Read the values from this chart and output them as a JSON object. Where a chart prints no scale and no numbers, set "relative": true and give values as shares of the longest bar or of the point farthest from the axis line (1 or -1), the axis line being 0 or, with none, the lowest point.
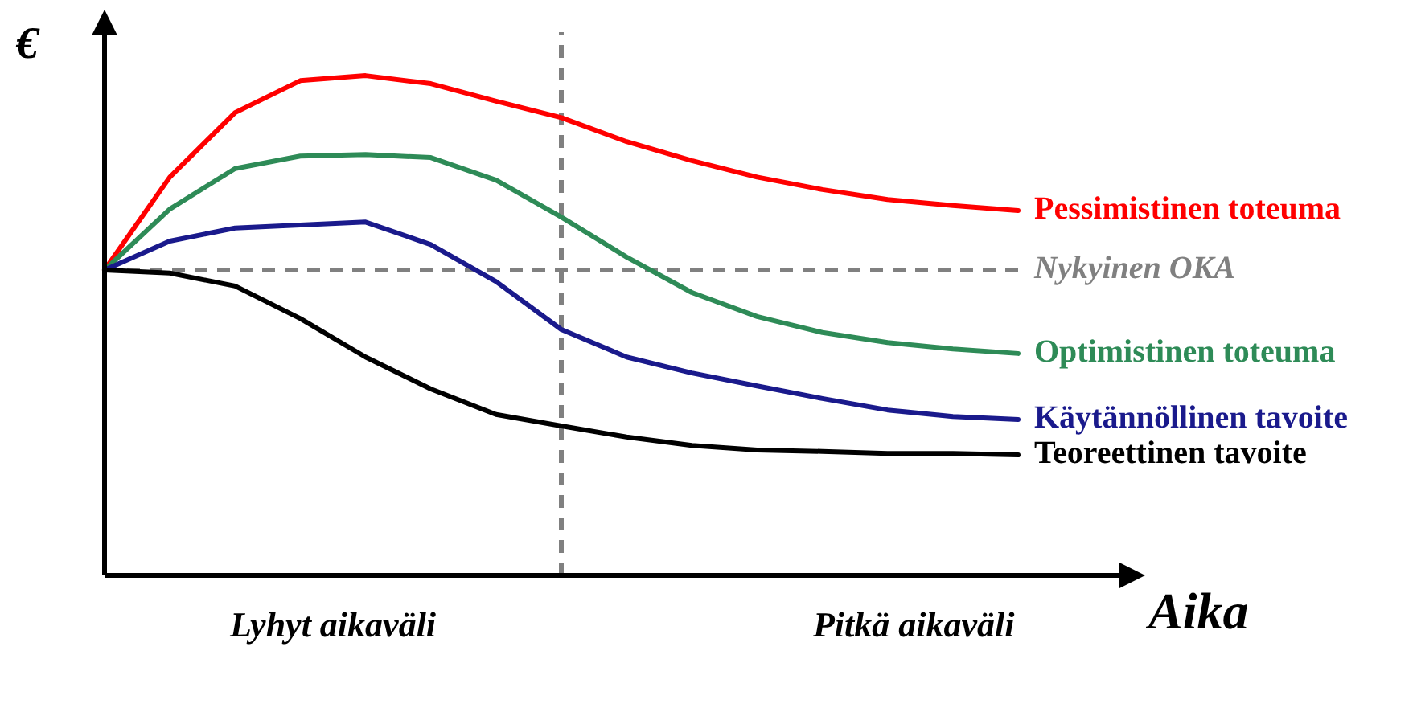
{
  "chart_data": {
    "type": "line",
    "relative": true,
    "xlabel": "Aika",
    "ylabel": "€",
    "categories": [
      null,
      null,
      null,
      null,
      null,
      null,
      null,
      null,
      null,
      null,
      null,
      null,
      null,
      null,
      null
    ],
    "marker": "none",
    "line_style": "solid",
    "series": [
      {
        "name": "Pessimistinen toteuma",
        "color": "#ff0000",
        "values": [
          0.611,
          0.797,
          0.926,
          0.99,
          1,
          0.984,
          0.949,
          0.916,
          0.868,
          0.83,
          0.797,
          0.772,
          0.752,
          0.74,
          0.73
        ]
      },
      {
        "name": "Optimistinen toteuma",
        "color": "#2e8b57",
        "values": [
          0.611,
          0.733,
          0.814,
          0.839,
          0.842,
          0.836,
          0.791,
          0.717,
          0.637,
          0.566,
          0.518,
          0.486,
          0.466,
          0.453,
          0.444
        ]
      },
      {
        "name": "Käytännöllinen tavoite",
        "color": "#1a1a8c",
        "values": [
          0.611,
          0.669,
          0.695,
          0.701,
          0.707,
          0.662,
          0.588,
          0.492,
          0.437,
          0.405,
          0.379,
          0.354,
          0.331,
          0.318,
          0.312
        ]
      },
      {
        "name": "Teoreettinen tavoite",
        "color": "#000000",
        "values": [
          0.611,
          0.605,
          0.579,
          0.514,
          0.437,
          0.373,
          0.322,
          0.299,
          0.277,
          0.26,
          0.251,
          0.248,
          0.244,
          0.244,
          0.241
        ]
      }
    ],
    "ref_lines": [
      {
        "axis": "y",
        "value": 0.611,
        "label": "Nykyinen OKA",
        "color": "#808080",
        "line_style": "dashed"
      }
    ],
    "annotations": [
      "Lyhyt aikaväli",
      "Pitkä aikaväli"
    ]
  }
}
